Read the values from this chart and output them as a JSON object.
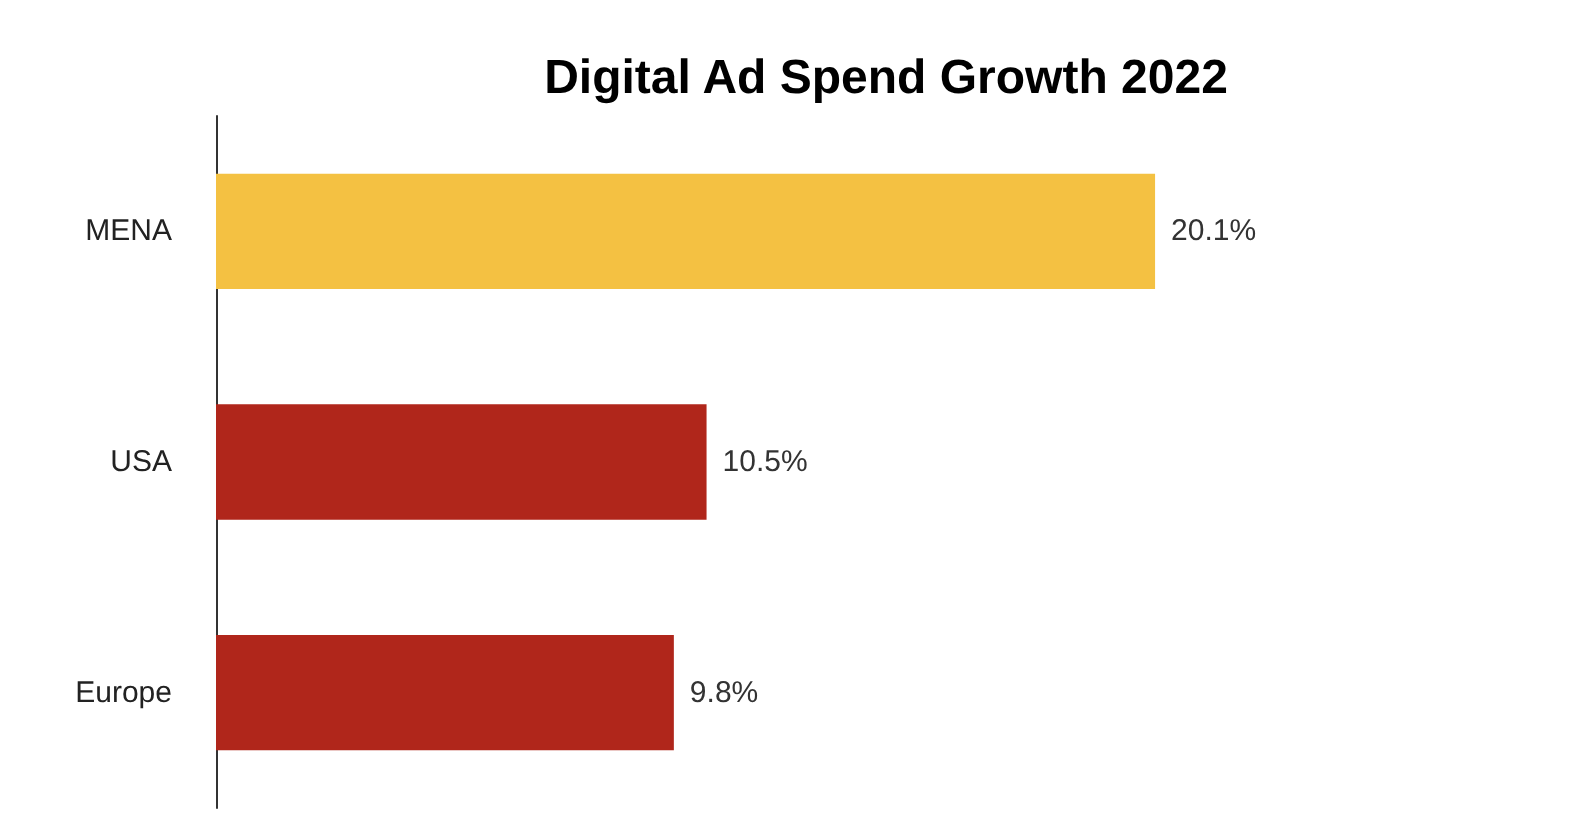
{
  "chart_data": {
    "type": "bar",
    "title": "Digital Ad Spend Growth 2022",
    "orientation": "horizontal",
    "categories": [
      "MENA",
      "USA",
      "Europe"
    ],
    "values": [
      20.1,
      10.5,
      9.8
    ],
    "colors": [
      "#f4c142",
      "#b0261b",
      "#b0261b"
    ],
    "value_labels": [
      "20.1%",
      "10.5%",
      "9.8%"
    ],
    "tick_labels": "y"
  }
}
